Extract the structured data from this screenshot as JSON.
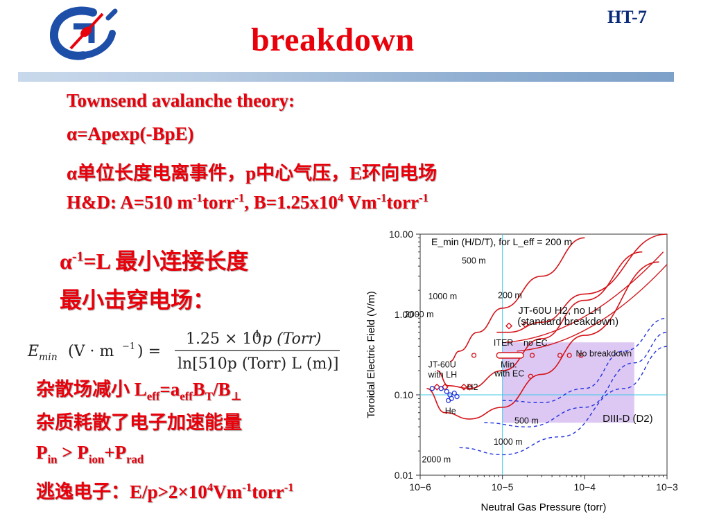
{
  "header": {
    "tag": "HT-7",
    "title": "breakdown"
  },
  "colors": {
    "accent_red": "#e8000b",
    "tag_blue": "#0a2a7a",
    "logo_blue": "#1e4fa8"
  },
  "body": {
    "line1": "Townsend avalanche theory:",
    "line2": "α=Apexp(-BpE)",
    "line3": "α单位长度电离事件，p中心气压，E环向电场",
    "line4_parts": [
      "H&D: A=510 m",
      "-1",
      "torr",
      "-1",
      ", B=1.25x10",
      "4",
      " Vm",
      "-1",
      "torr",
      "-1"
    ],
    "line5_parts": [
      "α",
      "-1",
      "=L 最小连接长度"
    ],
    "line6": "最小击穿电场：",
    "line7_parts": [
      "杂散场减小 L",
      "eff",
      "=a",
      "eff",
      "B",
      "T",
      "/B",
      "⊥"
    ],
    "line8": "杂质耗散了电子加速能量",
    "line9_parts": [
      "P",
      "in",
      " > P",
      "ion",
      "+P",
      "rad"
    ],
    "line10_parts": [
      "逃逸电子：E/p>2×10",
      "4",
      "Vm",
      "-1",
      "torr",
      "-1"
    ]
  },
  "formula": {
    "lhs": "E",
    "lhs_sub": "min",
    "lhs_units": "(V · m",
    "lhs_units_sup": "−1",
    "lhs_units_close": ") =",
    "numerator": "1.25 × 10",
    "numerator_sup": "4",
    "numerator_rest": "p (Torr)",
    "denominator": "ln[510p (Torr) L (m)]"
  },
  "chart_data": {
    "type": "line",
    "title": "E_min (H/D/T), for L_eff = 200 m",
    "xlabel": "Neutral Gas Pressure (torr)",
    "ylabel": "Toroidal Electric Field (V/m)",
    "x_scale": "log",
    "y_scale": "log",
    "xlim": [
      1e-06,
      0.001
    ],
    "ylim": [
      0.01,
      10
    ],
    "x_tick_labels": [
      "10−6",
      "10−5",
      "10−4",
      "10−3"
    ],
    "y_tick_labels": [
      "0.01",
      "0.10",
      "1.00",
      "10.00"
    ],
    "grid": "x=1e-5 and y=0.10 reference lines",
    "annotations": [
      "500 m",
      "1000 m",
      "200 m",
      "2000 m",
      "JT-60U H2, no LH",
      "(standard breakdown)",
      "ITER",
      "no EC",
      "No breakdown",
      "Min.",
      "with EC",
      "JT-60U",
      "with LH",
      "H2",
      "He",
      "500 m",
      "1000 m",
      "2000 m",
      "DIII-D (D2)"
    ],
    "series": [
      {
        "name": "500 m",
        "style": "solid-red",
        "points": [
          [
            2.3e-06,
            0.26
          ],
          [
            3e-06,
            0.35
          ],
          [
            5e-06,
            0.6
          ],
          [
            1e-05,
            1.2
          ],
          [
            3e-05,
            3.0
          ],
          [
            0.0001,
            9.0
          ]
        ]
      },
      {
        "name": "1000 m",
        "style": "solid-red",
        "points": [
          [
            1.6e-06,
            0.2
          ],
          [
            2.2e-06,
            0.13
          ],
          [
            4e-06,
            0.12
          ],
          [
            1e-05,
            0.2
          ],
          [
            3e-05,
            0.5
          ],
          [
            0.0001,
            1.5
          ],
          [
            0.0005,
            6.0
          ]
        ]
      },
      {
        "name": "2000 m",
        "style": "solid-red",
        "points": [
          [
            1.2e-06,
            0.12
          ],
          [
            2e-06,
            0.06
          ],
          [
            4e-06,
            0.05
          ],
          [
            1e-05,
            0.07
          ],
          [
            3e-05,
            0.18
          ],
          [
            0.0001,
            0.55
          ],
          [
            0.0008,
            4.5
          ]
        ]
      },
      {
        "name": "200 m",
        "style": "solid-red",
        "points": [
          [
            8.5e-06,
            0.6
          ],
          [
            1.2e-05,
            0.6
          ],
          [
            3e-05,
            0.8
          ],
          [
            0.0001,
            1.8
          ],
          [
            0.001,
            10
          ]
        ]
      },
      {
        "name": "DIII-D 500 m",
        "style": "dashed-blue",
        "points": [
          [
            1e-05,
            0.085
          ],
          [
            3e-05,
            0.08
          ],
          [
            0.0001,
            0.12
          ],
          [
            0.0003,
            0.35
          ],
          [
            0.001,
            0.9
          ]
        ]
      },
      {
        "name": "DIII-D 1000 m",
        "style": "dashed-blue",
        "points": [
          [
            6e-06,
            0.045
          ],
          [
            2e-05,
            0.04
          ],
          [
            0.0001,
            0.07
          ],
          [
            0.0004,
            0.25
          ],
          [
            0.001,
            0.6
          ]
        ]
      },
      {
        "name": "DIII-D 2000 m",
        "style": "dashed-blue",
        "points": [
          [
            3e-06,
            0.022
          ],
          [
            1e-05,
            0.018
          ],
          [
            5e-05,
            0.03
          ],
          [
            0.0003,
            0.12
          ],
          [
            0.001,
            0.4
          ]
        ]
      }
    ],
    "regions": [
      {
        "label": "DIII-D (D2)",
        "x": [
          1e-05,
          0.0004
        ],
        "y": [
          0.045,
          0.45
        ],
        "color": "#d9c2f2"
      }
    ]
  }
}
